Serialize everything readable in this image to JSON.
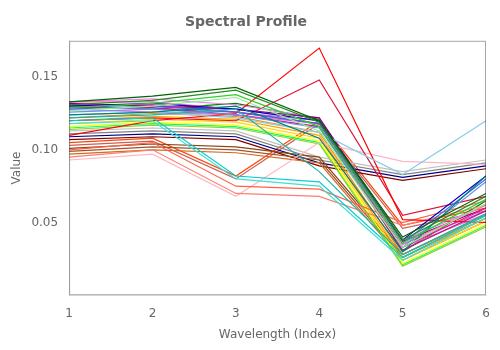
{
  "chart_data": {
    "type": "line",
    "title": "Spectral Profile",
    "xlabel": "Wavelength (Index)",
    "ylabel": "Value",
    "x": [
      1,
      2,
      3,
      4,
      5,
      6
    ],
    "xlim": [
      1,
      6
    ],
    "xticks": [
      1,
      2,
      3,
      4,
      5,
      6
    ],
    "ylim": [
      0.0,
      0.175
    ],
    "yticks": [
      0.05,
      {
        "value": 0.1,
        "label": "0.10"
      },
      0.15
    ],
    "grid": false,
    "series": [
      {
        "color": "#006400",
        "values": [
          0.133,
          0.137,
          0.143,
          0.12,
          0.04,
          0.07
        ]
      },
      {
        "color": "#228B22",
        "values": [
          0.131,
          0.134,
          0.141,
          0.119,
          0.038,
          0.068
        ]
      },
      {
        "color": "#32CD32",
        "values": [
          0.129,
          0.132,
          0.138,
          0.116,
          0.036,
          0.066
        ]
      },
      {
        "color": "#90EE90",
        "values": [
          0.127,
          0.13,
          0.136,
          0.113,
          0.033,
          0.063
        ]
      },
      {
        "color": "#008080",
        "values": [
          0.124,
          0.126,
          0.13,
          0.108,
          0.03,
          0.082
        ]
      },
      {
        "color": "#20B2AA",
        "values": [
          0.122,
          0.124,
          0.128,
          0.085,
          0.028,
          0.056
        ]
      },
      {
        "color": "#00CED1",
        "values": [
          0.12,
          0.122,
          0.082,
          0.078,
          0.026,
          0.055
        ]
      },
      {
        "color": "#40E0D0",
        "values": [
          0.118,
          0.12,
          0.08,
          0.075,
          0.024,
          0.053
        ]
      },
      {
        "color": "#0000CD",
        "values": [
          0.13,
          0.132,
          0.128,
          0.12,
          0.038,
          0.082
        ]
      },
      {
        "color": "#4169E1",
        "values": [
          0.128,
          0.13,
          0.126,
          0.118,
          0.036,
          0.08
        ]
      },
      {
        "color": "#6495ED",
        "values": [
          0.126,
          0.128,
          0.124,
          0.115,
          0.033,
          0.078
        ]
      },
      {
        "color": "#87CEEB",
        "values": [
          0.124,
          0.126,
          0.122,
          0.112,
          0.083,
          0.12
        ]
      },
      {
        "color": "#FF0000",
        "values": [
          0.11,
          0.12,
          0.125,
          0.17,
          0.052,
          0.05
        ]
      },
      {
        "color": "#DC143C",
        "values": [
          0.12,
          0.122,
          0.12,
          0.148,
          0.055,
          0.068
        ]
      },
      {
        "color": "#FF6347",
        "values": [
          0.1,
          0.105,
          0.075,
          0.073,
          0.05,
          0.065
        ]
      },
      {
        "color": "#FA8072",
        "values": [
          0.095,
          0.1,
          0.07,
          0.068,
          0.048,
          0.062
        ]
      },
      {
        "color": "#FFB6C1",
        "values": [
          0.093,
          0.097,
          0.068,
          0.105,
          0.092,
          0.09
        ]
      },
      {
        "color": "#FF69B4",
        "values": [
          0.133,
          0.133,
          0.128,
          0.12,
          0.035,
          0.062
        ]
      },
      {
        "color": "#FF1493",
        "values": [
          0.131,
          0.131,
          0.126,
          0.118,
          0.033,
          0.06
        ]
      },
      {
        "color": "#C71585",
        "values": [
          0.129,
          0.129,
          0.124,
          0.116,
          0.031,
          0.058
        ]
      },
      {
        "color": "#FF8C00",
        "values": [
          0.122,
          0.125,
          0.123,
          0.112,
          0.028,
          0.055
        ]
      },
      {
        "color": "#FFA500",
        "values": [
          0.12,
          0.123,
          0.121,
          0.11,
          0.026,
          0.053
        ]
      },
      {
        "color": "#FFD700",
        "values": [
          0.118,
          0.121,
          0.119,
          0.108,
          0.024,
          0.051
        ]
      },
      {
        "color": "#FFFF00",
        "values": [
          0.116,
          0.119,
          0.117,
          0.106,
          0.022,
          0.049
        ]
      },
      {
        "color": "#9ACD32",
        "values": [
          0.114,
          0.117,
          0.115,
          0.104,
          0.02,
          0.047
        ]
      },
      {
        "color": "#8B4513",
        "values": [
          0.101,
          0.104,
          0.102,
          0.095,
          0.028,
          0.055
        ]
      },
      {
        "color": "#A0522D",
        "values": [
          0.099,
          0.102,
          0.1,
          0.093,
          0.026,
          0.053
        ]
      },
      {
        "color": "#D2691E",
        "values": [
          0.097,
          0.1,
          0.098,
          0.091,
          0.024,
          0.051
        ]
      },
      {
        "color": "#800080",
        "values": [
          0.132,
          0.13,
          0.128,
          0.122,
          0.037,
          0.06
        ]
      },
      {
        "color": "#9370DB",
        "values": [
          0.13,
          0.128,
          0.126,
          0.12,
          0.035,
          0.058
        ]
      },
      {
        "color": "#DA70D6",
        "values": [
          0.128,
          0.126,
          0.124,
          0.118,
          0.033,
          0.056
        ]
      },
      {
        "color": "#EE82EE",
        "values": [
          0.133,
          0.135,
          0.131,
          0.122,
          0.038,
          0.062
        ]
      },
      {
        "color": "#C0C0C0",
        "values": [
          0.113,
          0.115,
          0.113,
          0.095,
          0.085,
          0.093
        ]
      },
      {
        "color": "#808080",
        "values": [
          0.111,
          0.113,
          0.111,
          0.093,
          0.083,
          0.091
        ]
      },
      {
        "color": "#000080",
        "values": [
          0.109,
          0.111,
          0.109,
          0.091,
          0.081,
          0.089
        ]
      },
      {
        "color": "#800000",
        "values": [
          0.107,
          0.109,
          0.107,
          0.089,
          0.079,
          0.087
        ]
      },
      {
        "color": "#008000",
        "values": [
          0.131,
          0.128,
          0.132,
          0.121,
          0.03,
          0.065
        ]
      },
      {
        "color": "#00FF7F",
        "values": [
          0.115,
          0.118,
          0.116,
          0.105,
          0.021,
          0.048
        ]
      },
      {
        "color": "#FF4500",
        "values": [
          0.105,
          0.108,
          0.082,
          0.12,
          0.048,
          0.06
        ]
      },
      {
        "color": "#CD5C5C",
        "values": [
          0.103,
          0.106,
          0.08,
          0.118,
          0.046,
          0.058
        ]
      }
    ]
  }
}
